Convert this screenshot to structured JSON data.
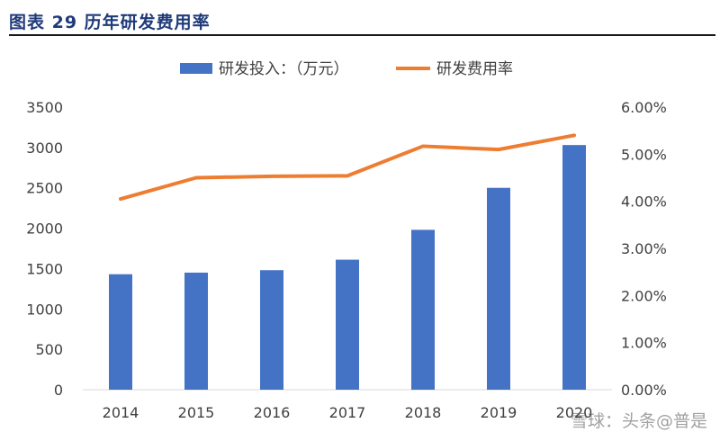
{
  "figure": {
    "label": "图表 29 历年研发费用率"
  },
  "watermark": "雪球：头条@普是",
  "chart_data": {
    "type": "bar",
    "categories": [
      "2014",
      "2015",
      "2016",
      "2017",
      "2018",
      "2019",
      "2020"
    ],
    "series": [
      {
        "name": "研发投入：（万元）",
        "type": "bar",
        "axis": "left",
        "color": "#4472C4",
        "values": [
          1430,
          1450,
          1480,
          1610,
          1980,
          2500,
          3030
        ]
      },
      {
        "name": "研发费用率",
        "type": "line",
        "axis": "right",
        "color": "#ED7D31",
        "values": [
          4.05,
          4.5,
          4.53,
          4.54,
          5.17,
          5.1,
          5.4
        ]
      }
    ],
    "yleft": {
      "ticks": [
        0,
        500,
        1000,
        1500,
        2000,
        2500,
        3000,
        3500
      ],
      "ylim": [
        0,
        3500
      ]
    },
    "yright": {
      "ticks": [
        "0.00%",
        "1.00%",
        "2.00%",
        "3.00%",
        "4.00%",
        "5.00%",
        "6.00%"
      ],
      "ylim": [
        0,
        6
      ]
    },
    "legend_position": "top",
    "grid": false
  }
}
